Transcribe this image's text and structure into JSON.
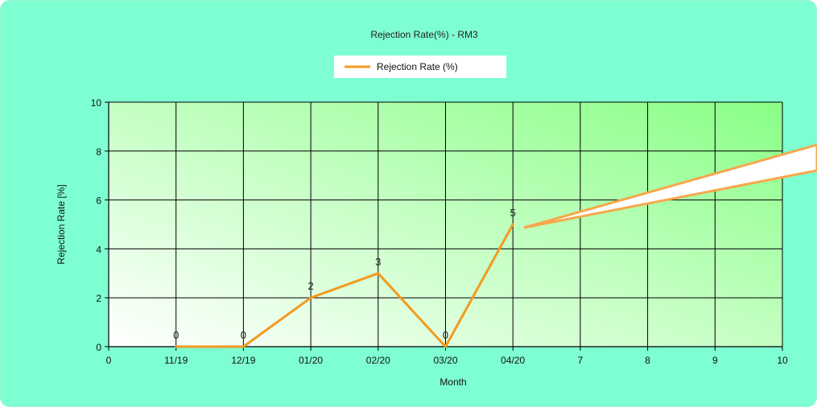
{
  "chart_data": {
    "type": "line",
    "title": "Rejection Rate(%) - RM3",
    "xlabel": "Month",
    "ylabel": "Rejection Rate [%]",
    "xlim": [
      0,
      10
    ],
    "ylim": [
      0,
      10
    ],
    "y_ticks": [
      0,
      2,
      4,
      6,
      8,
      10
    ],
    "x_tick_labels": [
      "0",
      "11/19",
      "12/19",
      "01/20",
      "02/20",
      "03/20",
      "04/20",
      "7",
      "8",
      "9",
      "10"
    ],
    "grid": true,
    "legend_position": "top-center",
    "series": [
      {
        "name": "Rejection Rate (%)",
        "color": "#f39a1f",
        "x": [
          "11/19",
          "12/19",
          "01/20",
          "02/20",
          "03/20",
          "04/20"
        ],
        "values": [
          0,
          0,
          2,
          3,
          0,
          5
        ],
        "data_labels": [
          "0",
          "0",
          "2",
          "3",
          "0",
          "5"
        ]
      }
    ]
  },
  "colors": {
    "panel_background": "#7effd2",
    "plot_gradient_start": "#ffffff",
    "plot_gradient_end": "#89ff86",
    "grid": "#000000",
    "callout_outline": "#f7a74a",
    "callout_fill": "#ffffff"
  }
}
